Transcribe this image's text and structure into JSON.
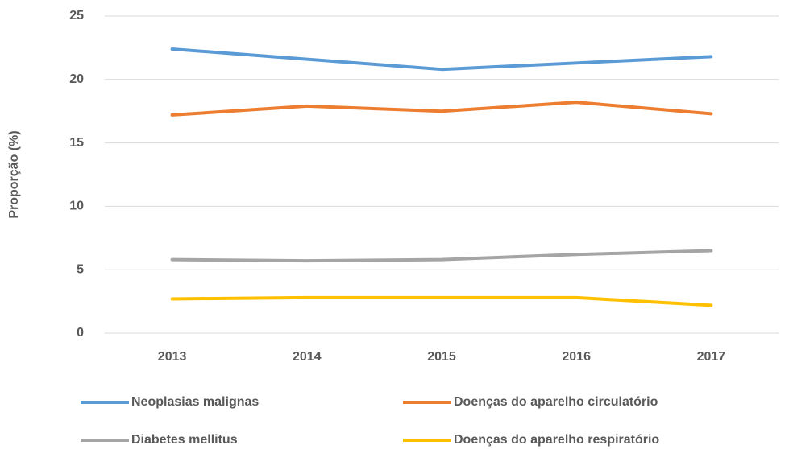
{
  "chart_data": {
    "type": "line",
    "ylabel": "Proporção (%)",
    "categories": [
      "2013",
      "2014",
      "2015",
      "2016",
      "2017"
    ],
    "series": [
      {
        "name": "Neoplasias malignas",
        "color": "#5b9bd5",
        "values": [
          22.4,
          21.6,
          20.8,
          21.3,
          21.8
        ]
      },
      {
        "name": "Doenças do aparelho circulatório",
        "color": "#ed7d31",
        "values": [
          17.2,
          17.9,
          17.5,
          18.2,
          17.3
        ]
      },
      {
        "name": "Diabetes mellitus",
        "color": "#a5a5a5",
        "values": [
          5.8,
          5.7,
          5.8,
          6.2,
          6.5
        ]
      },
      {
        "name": "Doenças do aparelho respiratório",
        "color": "#ffc000",
        "values": [
          2.7,
          2.8,
          2.8,
          2.8,
          2.2
        ]
      }
    ],
    "ylim": [
      0,
      25
    ],
    "yticks": [
      0,
      5,
      10,
      15,
      20,
      25
    ],
    "grid": true,
    "legend": "bottom"
  }
}
